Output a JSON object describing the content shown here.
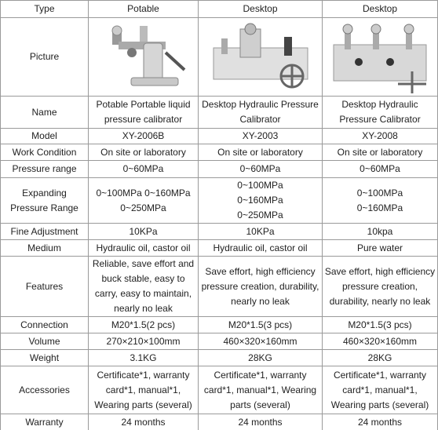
{
  "table": {
    "header": [
      "Type",
      "Potable",
      "Desktop",
      "Desktop"
    ],
    "rows": [
      [
        "Picture"
      ],
      [
        "Name",
        "Potable Portable liquid pressure calibrator",
        "Desktop Hydraulic Pressure Calibrator",
        "Desktop Hydraulic Pressure Calibrator"
      ],
      [
        "Model",
        "XY-2006B",
        "XY-2003",
        "XY-2008"
      ],
      [
        "Work Condition",
        "On site or laboratory",
        "On site or laboratory",
        "On site or laboratory"
      ],
      [
        "Pressure range",
        "0~60MPa",
        "0~60MPa",
        "0~60MPa"
      ],
      [
        "Expanding Pressure Range",
        "0~100MPa 0~160MPa 0~250MPa",
        [
          "0~100MPa",
          "0~160MPa",
          "0~250MPa"
        ],
        [
          "0~100MPa",
          "0~160MPa"
        ]
      ],
      [
        "Fine Adjustment",
        "10KPa",
        "10KPa",
        "10kpa"
      ],
      [
        "Medium",
        "Hydraulic oil, castor oil",
        "Hydraulic oil, castor oil",
        "Pure water"
      ],
      [
        "Features",
        "Reliable, save effort and buck stable, easy to carry, easy to maintain, nearly no leak",
        "Save effort, high efficiency pressure creation, durability, nearly no leak",
        "Save effort, high efficiency pressure creation, durability, nearly no leak"
      ],
      [
        "Connection",
        "M20*1.5(2 pcs)",
        "M20*1.5(3 pcs)",
        "M20*1.5(3 pcs)"
      ],
      [
        "Volume",
        "270×210×100mm",
        "460×320×160mm",
        "460×320×160mm"
      ],
      [
        "Weight",
        "3.1KG",
        "28KG",
        "28KG"
      ],
      [
        "Accessories",
        "Certificate*1, warranty card*1, manual*1, Wearing parts (several)",
        "Certificate*1, warranty card*1, manual*1, Wearing parts (several)",
        "Certificate*1, warranty card*1, manual*1, Wearing parts (several)"
      ],
      [
        "Warranty",
        "24 months",
        "24 months",
        "24 months"
      ]
    ]
  }
}
